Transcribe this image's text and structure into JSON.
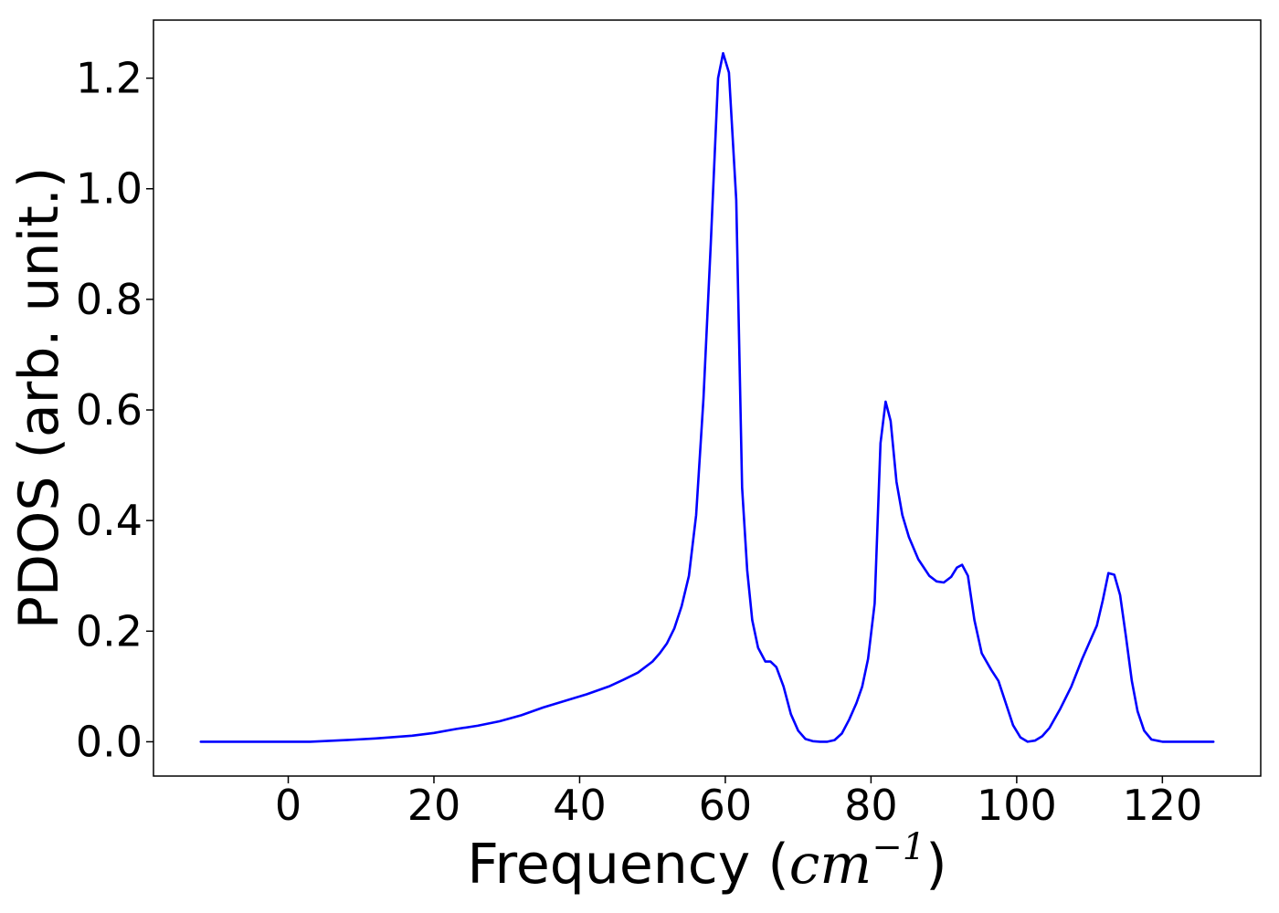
{
  "chart_data": {
    "type": "line",
    "xlabel": "Frequency (",
    "xlabel_math": "cm",
    "xlabel_sup": "−1",
    "xlabel_close": ")",
    "ylabel": "PDOS (arb. unit.)",
    "xlim": [
      -18.5,
      133.5
    ],
    "ylim": [
      -0.062,
      1.305
    ],
    "xticks": [
      0,
      20,
      40,
      60,
      80,
      100,
      120
    ],
    "xtick_labels": [
      "0",
      "20",
      "40",
      "60",
      "80",
      "100",
      "120"
    ],
    "yticks": [
      0.0,
      0.2,
      0.4,
      0.6,
      0.8,
      1.0,
      1.2
    ],
    "ytick_labels": [
      "0.0",
      "0.2",
      "0.4",
      "0.6",
      "0.8",
      "1.0",
      "1.2"
    ],
    "grid": false,
    "series": [
      {
        "color": "#0000ff",
        "x": [
          -12,
          -5,
          0,
          3,
          8,
          12,
          17,
          20,
          23,
          26,
          29,
          32,
          35,
          38,
          41,
          44,
          46,
          48,
          50,
          51,
          52,
          53,
          54,
          55,
          56,
          57,
          58,
          59,
          59.7,
          60.5,
          61.5,
          62.3,
          63,
          63.7,
          64.5,
          65.5,
          66.2,
          67,
          68,
          69,
          70,
          71,
          72,
          73,
          74,
          75,
          76,
          77,
          78,
          78.8,
          79.6,
          80.5,
          81.3,
          82,
          82.7,
          83.5,
          84.3,
          85.2,
          86.5,
          88,
          89,
          90,
          91,
          91.8,
          92.5,
          93.3,
          94.2,
          95.2,
          96.5,
          97.5,
          98.5,
          99.5,
          100.5,
          101.5,
          102.5,
          103.5,
          104.5,
          106,
          107.5,
          109,
          110,
          111,
          111.8,
          112.6,
          113.4,
          114.2,
          115,
          115.8,
          116.6,
          117.5,
          118.5,
          120,
          123,
          127
        ],
        "y": [
          0.0,
          0.0,
          0.0,
          0.0,
          0.003,
          0.006,
          0.011,
          0.016,
          0.023,
          0.029,
          0.037,
          0.048,
          0.062,
          0.074,
          0.086,
          0.1,
          0.112,
          0.125,
          0.145,
          0.16,
          0.178,
          0.205,
          0.245,
          0.3,
          0.41,
          0.62,
          0.9,
          1.2,
          1.245,
          1.21,
          0.98,
          0.46,
          0.31,
          0.22,
          0.17,
          0.145,
          0.145,
          0.135,
          0.1,
          0.05,
          0.02,
          0.005,
          0.001,
          0.0,
          0.0,
          0.003,
          0.015,
          0.04,
          0.07,
          0.1,
          0.15,
          0.25,
          0.54,
          0.615,
          0.58,
          0.47,
          0.41,
          0.37,
          0.33,
          0.3,
          0.29,
          0.288,
          0.298,
          0.315,
          0.32,
          0.3,
          0.22,
          0.16,
          0.13,
          0.11,
          0.07,
          0.03,
          0.008,
          0.0,
          0.002,
          0.01,
          0.025,
          0.06,
          0.1,
          0.15,
          0.18,
          0.21,
          0.255,
          0.305,
          0.302,
          0.265,
          0.19,
          0.11,
          0.055,
          0.02,
          0.004,
          0.0,
          0.0,
          0.0
        ]
      }
    ]
  }
}
